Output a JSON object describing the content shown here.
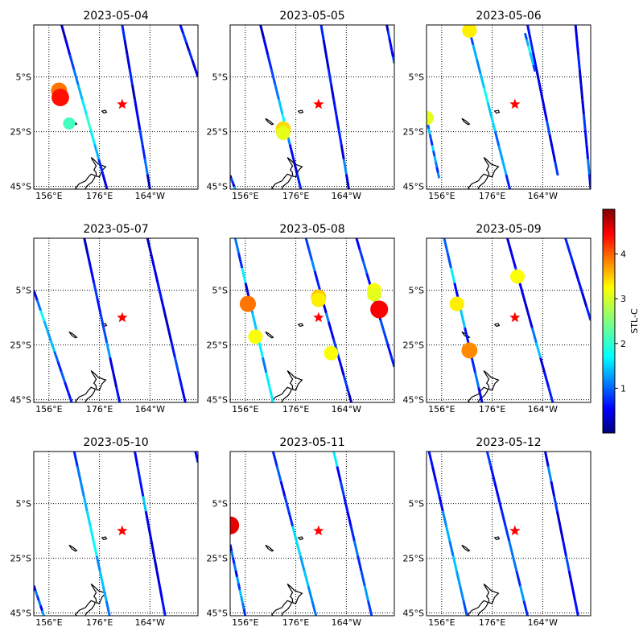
{
  "chart_data": {
    "type": "scatter",
    "colorbar": {
      "label": "STL-C",
      "ticks": [
        1,
        2,
        3,
        4
      ],
      "range": [
        0,
        5
      ],
      "colormap": "jet"
    },
    "axes": {
      "x_ticks": [
        "156°E",
        "176°E",
        "164°W"
      ],
      "y_ticks": [
        "5°S",
        "25°S",
        "45°S"
      ],
      "xlim": [
        150,
        215
      ],
      "ylim": [
        -46,
        14
      ],
      "grid": "dotted"
    },
    "star": {
      "lon": 185.0,
      "lat": -15.0,
      "color": "#ff0000"
    },
    "panels": [
      {
        "title": "2023-05-04",
        "tracks": [
          {
            "start": [
              161.0,
              14
            ],
            "end": [
              179.0,
              -46
            ],
            "levels": [
              0.3,
              0.6,
              0.9,
              1.2,
              1.5,
              1.8,
              2.1,
              1.8,
              1.5,
              0.8,
              0.5
            ]
          },
          {
            "start": [
              185.0,
              14
            ],
            "end": [
              196.0,
              -46
            ],
            "levels": [
              0.8,
              0.3,
              0.5,
              0.8,
              0.2,
              0.6,
              0.6,
              0.9,
              0.8,
              1.2,
              0.3
            ]
          },
          {
            "start": [
              208.0,
              14
            ],
            "end": [
              215.0,
              -5
            ],
            "levels": [
              0.7,
              0.9,
              0.3,
              0.8,
              0.4,
              0.5
            ]
          }
        ],
        "events": [
          {
            "lon": 160.0,
            "lat": -10.0,
            "value": 3.8
          },
          {
            "lon": 160.5,
            "lat": -12.5,
            "value": 4.3
          },
          {
            "lon": 164.0,
            "lat": -22.0,
            "value": 2.2
          }
        ]
      },
      {
        "title": "2023-05-05",
        "tracks": [
          {
            "start": [
              162.0,
              14
            ],
            "end": [
              178.0,
              -46
            ],
            "levels": [
              0.3,
              0.6,
              0.8,
              1.0,
              1.2,
              1.6,
              1.9,
              1.3,
              0.7,
              0.4,
              0.8
            ]
          },
          {
            "start": [
              186.0,
              14
            ],
            "end": [
              197.0,
              -46
            ],
            "levels": [
              0.8,
              0.4,
              0.4,
              0.8,
              0.4,
              0.7,
              0.7,
              0.8,
              0.4,
              1.3,
              0.4
            ]
          },
          {
            "start": [
              212.0,
              14
            ],
            "end": [
              215.0,
              0
            ],
            "levels": [
              0.3,
              0.9,
              0.6,
              0.6,
              0.6,
              1.1
            ]
          },
          {
            "start": [
              150.0,
              -41
            ],
            "end": [
              152.0,
              -46
            ],
            "levels": [
              0.2,
              1.0,
              0.8,
              0.4,
              1.5
            ]
          }
        ],
        "events": [
          {
            "lon": 171.0,
            "lat": -24.0,
            "value": 3.3
          },
          {
            "lon": 171.0,
            "lat": -25.5,
            "value": 3.0
          }
        ]
      },
      {
        "title": "2023-05-06",
        "tracks": [
          {
            "start": [
              167.0,
              12
            ],
            "end": [
              183.0,
              -46
            ],
            "levels": [
              1.0,
              1.5,
              1.3,
              1.6,
              1.9,
              1.6,
              1.7,
              1.1,
              1.4,
              1.5,
              0.8
            ]
          },
          {
            "start": [
              190.0,
              14
            ],
            "end": [
              202.0,
              -41
            ],
            "levels": [
              0.7,
              0.8,
              0.6,
              0.4,
              0.6,
              0.5,
              0.6,
              1.0,
              0.5,
              0.5,
              0.9
            ]
          },
          {
            "start": [
              150.0,
              -20
            ],
            "end": [
              155.0,
              -42
            ],
            "levels": [
              1.5,
              1.1,
              1.6,
              1.0,
              0.8,
              1.7,
              1.0,
              1.5,
              1.2,
              0.8,
              1.3
            ]
          },
          {
            "start": [
              189.0,
              11
            ],
            "end": [
              193.0,
              -3
            ],
            "levels": [
              1.0,
              1.5,
              2.0,
              1.6,
              1.6,
              0.9
            ]
          },
          {
            "start": [
              209.0,
              14
            ],
            "end": [
              215.0,
              -46
            ],
            "levels": [
              0.5,
              0.6,
              0.8,
              0.4,
              0.4,
              0.4,
              0.9,
              0.7,
              0.6,
              1.2,
              0.7
            ]
          }
        ],
        "events": [
          {
            "lon": 167.0,
            "lat": 12.0,
            "value": 3.2
          },
          {
            "lon": 150.0,
            "lat": -20.0,
            "value": 3.0
          }
        ]
      },
      {
        "title": "2023-05-07",
        "tracks": [
          {
            "start": [
              150.0,
              -5
            ],
            "end": [
              165.0,
              -46
            ],
            "levels": [
              0.7,
              1.2,
              1.9,
              1.5,
              1.4,
              1.6,
              1.1,
              0.8,
              1.1,
              0.7,
              0.7
            ]
          },
          {
            "start": [
              170.0,
              14
            ],
            "end": [
              184.0,
              -46
            ],
            "levels": [
              0.3,
              0.5,
              0.6,
              0.9,
              0.7,
              0.9,
              1.0,
              1.4,
              0.5,
              0.4,
              0.7
            ]
          },
          {
            "start": [
              195.0,
              14
            ],
            "end": [
              210.0,
              -46
            ],
            "levels": [
              0.3,
              0.5,
              0.5,
              0.7,
              0.5,
              0.3,
              0.4,
              0.7,
              1.0,
              0.7,
              0.6
            ]
          }
        ],
        "events": []
      },
      {
        "title": "2023-05-08",
        "tracks": [
          {
            "start": [
              152.0,
              14
            ],
            "end": [
              167.0,
              -46
            ],
            "levels": [
              1.2,
              0.8,
              1.8,
              0.4,
              1.4,
              1.6,
              1.6,
              1.8,
              1.2,
              1.8,
              1.8
            ]
          },
          {
            "start": [
              180.0,
              14
            ],
            "end": [
              187.0,
              -10
            ],
            "levels": [
              0.9,
              1.0,
              1.3,
              0.7,
              0.8,
              0.9
            ]
          },
          {
            "start": [
              187.0,
              -10
            ],
            "end": [
              198.0,
              -46
            ],
            "levels": [
              0.4,
              1.2,
              0.6,
              0.6,
              0.9,
              0.8,
              0.6,
              0.4,
              0.9,
              0.8,
              0.3
            ]
          },
          {
            "start": [
              200.0,
              14
            ],
            "end": [
              215.0,
              -33
            ],
            "levels": [
              0.6,
              0.9,
              1.1,
              0.7,
              0.6,
              0.5,
              0.5,
              1.0,
              0.9,
              0.7,
              0.8
            ]
          }
        ],
        "events": [
          {
            "lon": 157.0,
            "lat": -10.0,
            "value": 3.8
          },
          {
            "lon": 160.0,
            "lat": -22.0,
            "value": 3.1
          },
          {
            "lon": 185.0,
            "lat": -7.5,
            "value": 3.4
          },
          {
            "lon": 185.0,
            "lat": -8.5,
            "value": 3.2
          },
          {
            "lon": 190.0,
            "lat": -28.0,
            "value": 3.1
          },
          {
            "lon": 207.0,
            "lat": -5.0,
            "value": 3.1
          },
          {
            "lon": 207.0,
            "lat": -6.5,
            "value": 3.0
          },
          {
            "lon": 209.0,
            "lat": -12.0,
            "value": 4.4
          }
        ]
      },
      {
        "title": "2023-05-09",
        "tracks": [
          {
            "start": [
              157.0,
              14
            ],
            "end": [
              172.0,
              -46
            ],
            "levels": [
              1.1,
              1.0,
              1.8,
              0.6,
              1.6,
              1.6,
              0.7,
              1.1,
              0.8,
              1.2,
              0.6
            ]
          },
          {
            "start": [
              182.0,
              14
            ],
            "end": [
              200.0,
              -46
            ],
            "levels": [
              0.5,
              0.6,
              0.9,
              0.6,
              0.4,
              0.5,
              1.2,
              1.6,
              0.4,
              0.7,
              0.8
            ]
          },
          {
            "start": [
              205.0,
              14
            ],
            "end": [
              215.0,
              -16
            ],
            "levels": [
              0.8,
              0.8,
              0.5,
              0.7,
              0.4,
              0.8
            ]
          }
        ],
        "events": [
          {
            "lon": 162.0,
            "lat": -10.0,
            "value": 3.2
          },
          {
            "lon": 167.0,
            "lat": -27.0,
            "value": 3.7
          },
          {
            "lon": 186.0,
            "lat": 0.0,
            "value": 3.1
          }
        ]
      },
      {
        "title": "2023-05-10",
        "tracks": [
          {
            "start": [
              150.0,
              -35
            ],
            "end": [
              154.0,
              -46
            ],
            "levels": [
              0.5,
              1.2,
              0.9,
              1.2,
              0.6,
              1.4
            ]
          },
          {
            "start": [
              166.0,
              14
            ],
            "end": [
              180.0,
              -46
            ],
            "levels": [
              0.8,
              1.2,
              1.3,
              1.5,
              1.7,
              1.8,
              1.9,
              1.3,
              1.6,
              1.5,
              1.2
            ]
          },
          {
            "start": [
              190.0,
              14
            ],
            "end": [
              202.0,
              -46
            ],
            "levels": [
              0.6,
              0.8,
              0.7,
              1.6,
              0.5,
              0.5,
              0.4,
              0.4,
              0.5,
              0.6,
              0.7
            ]
          },
          {
            "start": [
              214.0,
              14
            ],
            "end": [
              215.0,
              10
            ],
            "levels": [
              0.6,
              0.5,
              0.6
            ]
          }
        ],
        "events": []
      },
      {
        "title": "2023-05-11",
        "tracks": [
          {
            "start": [
              150.0,
              -20
            ],
            "end": [
              156.0,
              -46
            ],
            "levels": [
              0.6,
              1.2,
              0.8,
              1.2,
              0.6,
              1.4,
              0.9,
              1.6,
              1.4,
              1.2,
              0.8
            ]
          },
          {
            "start": [
              167.0,
              14
            ],
            "end": [
              184.0,
              -46
            ],
            "levels": [
              0.8,
              1.1,
              0.6,
              0.9,
              0.8,
              1.7,
              1.7,
              1.4,
              1.6,
              1.3,
              1.2
            ]
          },
          {
            "start": [
              191.0,
              14
            ],
            "end": [
              206.0,
              -46
            ],
            "levels": [
              1.8,
              0.6,
              0.9,
              0.7,
              0.6,
              0.8,
              1.2,
              0.8,
              1.0,
              1.4,
              0.9
            ]
          }
        ],
        "events": [
          {
            "lon": 150.0,
            "lat": -13.0,
            "value": 4.5
          }
        ]
      },
      {
        "title": "2023-05-12",
        "tracks": [
          {
            "start": [
              151.0,
              14
            ],
            "end": [
              166.0,
              -46
            ],
            "levels": [
              0.7,
              0.5,
              0.8,
              0.6,
              1.3,
              1.5,
              1.2,
              1.6,
              1.4,
              1.3,
              1.0
            ]
          },
          {
            "start": [
              174.0,
              14
            ],
            "end": [
              190.0,
              -46
            ],
            "levels": [
              0.9,
              0.7,
              0.6,
              0.7,
              0.8,
              0.9,
              1.2,
              1.2,
              0.8,
              1.4,
              0.8
            ]
          },
          {
            "start": [
              197.0,
              14
            ],
            "end": [
              210.0,
              -46
            ],
            "levels": [
              0.5,
              1.3,
              0.5,
              0.9,
              0.4,
              0.4,
              0.7,
              1.0,
              0.5,
              0.6,
              0.7
            ]
          }
        ],
        "events": []
      }
    ]
  }
}
